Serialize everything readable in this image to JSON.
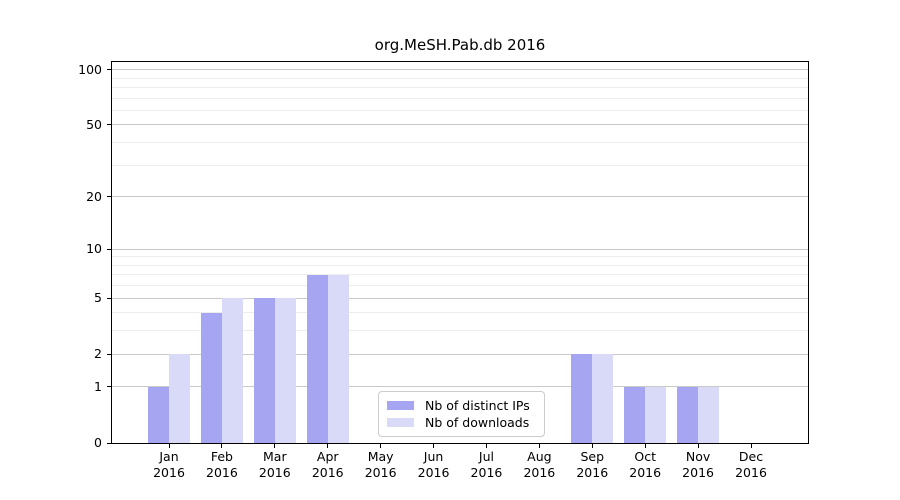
{
  "title": "org.MeSH.Pab.db 2016",
  "chart_data": {
    "type": "bar",
    "title": "org.MeSH.Pab.db 2016",
    "scale": "log1p",
    "grid": true,
    "categories": [
      "Jan",
      "Feb",
      "Mar",
      "Apr",
      "May",
      "Jun",
      "Jul",
      "Aug",
      "Sep",
      "Oct",
      "Nov",
      "Dec"
    ],
    "year": "2016",
    "series": [
      {
        "name": "Nb of distinct IPs",
        "color": "#a5a5f2",
        "values": [
          1,
          4,
          5,
          7,
          0,
          0,
          0,
          0,
          2,
          1,
          1,
          0
        ]
      },
      {
        "name": "Nb of downloads",
        "color": "#d9d9f8",
        "values": [
          2,
          5,
          5,
          7,
          0,
          0,
          0,
          0,
          2,
          1,
          1,
          0
        ]
      }
    ],
    "yticks": [
      0,
      1,
      2,
      5,
      10,
      20,
      50,
      100
    ],
    "minor_gridlines": [
      3,
      4,
      6,
      7,
      8,
      9,
      30,
      40,
      60,
      70,
      80,
      90
    ],
    "ylim": [
      0,
      110
    ],
    "xlabel": "",
    "ylabel": "",
    "legend_position": "bottom-center",
    "colors": {
      "axis": "#000000",
      "major_grid": "#c9c9c9",
      "minor_grid": "#ededed",
      "legend_border": "#cccccc"
    }
  }
}
